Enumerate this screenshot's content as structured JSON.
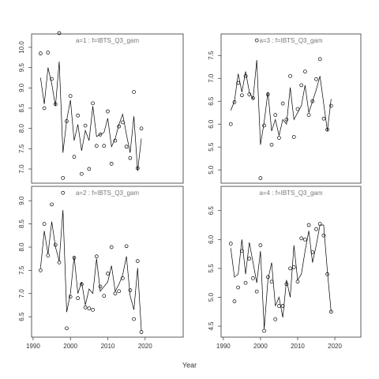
{
  "xlabel": "Year",
  "chart_data": [
    {
      "type": "scatter",
      "title": "a=1  :  f=IBTS_Q3_gam",
      "x": [
        1992,
        1993,
        1994,
        1995,
        1996,
        1997,
        1998,
        1999,
        2000,
        2001,
        2002,
        2003,
        2004,
        2005,
        2006,
        2007,
        2008,
        2009,
        2010,
        2011,
        2012,
        2013,
        2014,
        2015,
        2016,
        2017,
        2018,
        2019
      ],
      "series": [
        {
          "mode": "points",
          "color": "#000000",
          "values": [
            9.85,
            8.5,
            9.87,
            9.22,
            8.6,
            10.35,
            6.78,
            8.18,
            8.8,
            7.3,
            8.32,
            6.88,
            8.07,
            7.0,
            8.62,
            7.57,
            7.85,
            7.57,
            8.42,
            7.13,
            7.7,
            8.05,
            8.15,
            7.55,
            7.27,
            8.9,
            7.02,
            8.0
          ]
        },
        {
          "mode": "line",
          "color": "#000000",
          "values": [
            9.25,
            8.6,
            9.5,
            9.1,
            8.55,
            9.65,
            7.4,
            8.2,
            8.7,
            7.7,
            8.1,
            7.45,
            7.95,
            7.7,
            8.55,
            7.8,
            7.85,
            7.9,
            8.25,
            7.55,
            7.75,
            8.1,
            8.35,
            7.85,
            7.4,
            8.3,
            6.95,
            7.75
          ]
        }
      ],
      "xlim": [
        1989.6,
        2030.2
      ],
      "ylim": [
        6.65,
        10.33
      ],
      "yticks": [
        {
          "value": 7,
          "label": "7.0"
        },
        7.5,
        {
          "value": 8,
          "label": "8.0"
        },
        8.5,
        {
          "value": 9,
          "label": "9.0"
        },
        9.5,
        {
          "value": 10,
          "label": "10.0"
        }
      ]
    },
    {
      "type": "scatter",
      "title": "a=3  :  f=IBTS_Q3_gam",
      "x": [
        1992,
        1993,
        1994,
        1995,
        1996,
        1997,
        1998,
        1999,
        2000,
        2001,
        2002,
        2003,
        2004,
        2005,
        2006,
        2007,
        2008,
        2009,
        2010,
        2011,
        2012,
        2013,
        2014,
        2015,
        2016,
        2017,
        2018,
        2019
      ],
      "series": [
        {
          "mode": "points",
          "color": "#000000",
          "values": [
            6.0,
            6.48,
            6.9,
            6.63,
            7.05,
            6.65,
            6.57,
            7.83,
            4.82,
            5.97,
            6.65,
            5.55,
            6.2,
            5.7,
            6.45,
            6.1,
            7.05,
            5.72,
            6.33,
            6.85,
            7.15,
            6.2,
            6.5,
            6.98,
            7.42,
            6.12,
            5.88,
            6.4
          ]
        },
        {
          "mode": "line",
          "color": "#000000",
          "values": [
            6.3,
            6.5,
            7.1,
            6.7,
            7.15,
            6.7,
            6.55,
            7.4,
            5.55,
            6.05,
            6.7,
            5.85,
            6.1,
            5.75,
            6.1,
            6.0,
            6.8,
            6.1,
            6.25,
            6.4,
            6.85,
            6.25,
            6.5,
            6.75,
            7.05,
            6.45,
            5.85,
            6.55
          ]
        }
      ],
      "xlim": [
        1989.4,
        2027.0
      ],
      "ylim": [
        4.71,
        7.97
      ],
      "yticks": [
        {
          "value": 5,
          "label": "5.0"
        },
        5.5,
        {
          "value": 6,
          "label": "6.0"
        },
        6.5,
        {
          "value": 7,
          "label": "7.0"
        },
        7.5
      ]
    },
    {
      "type": "scatter",
      "title": "a=2  :  f=IBTS_Q3_gam",
      "x": [
        1992,
        1993,
        1994,
        1995,
        1996,
        1997,
        1998,
        1999,
        2000,
        2001,
        2002,
        2003,
        2004,
        2005,
        2006,
        2007,
        2008,
        2009,
        2010,
        2011,
        2012,
        2013,
        2014,
        2015,
        2016,
        2017,
        2018,
        2019
      ],
      "series": [
        {
          "mode": "points",
          "color": "#000000",
          "values": [
            7.5,
            8.5,
            7.82,
            8.92,
            8.05,
            7.67,
            9.17,
            6.25,
            6.93,
            7.77,
            6.9,
            7.2,
            6.7,
            6.68,
            6.65,
            7.8,
            7.15,
            6.95,
            7.43,
            8.0,
            7.0,
            7.05,
            7.33,
            8.02,
            7.07,
            6.45,
            7.7,
            6.17
          ]
        },
        {
          "mode": "line",
          "color": "#000000",
          "values": [
            7.55,
            8.35,
            7.85,
            8.55,
            8.0,
            7.7,
            8.8,
            6.6,
            7.0,
            7.8,
            7.0,
            7.25,
            6.75,
            7.1,
            7.0,
            7.75,
            7.05,
            7.15,
            7.25,
            7.6,
            7.05,
            7.2,
            7.4,
            7.8,
            6.95,
            6.65,
            7.55,
            6.2
          ]
        }
      ],
      "xlim": [
        1989.6,
        2030.2
      ],
      "ylim": [
        6.06,
        9.31
      ],
      "xticks": [
        1990,
        2000,
        2010,
        2020
      ],
      "yticks": [
        6.5,
        {
          "value": 7,
          "label": "7.0"
        },
        7.5,
        {
          "value": 8,
          "label": "8.0"
        },
        8.5,
        {
          "value": 9,
          "label": "9.0"
        }
      ]
    },
    {
      "type": "scatter",
      "title": "a=4  :  f=IBTS_Q3_gam",
      "x": [
        1992,
        1993,
        1994,
        1995,
        1996,
        1997,
        1998,
        1999,
        2000,
        2001,
        2002,
        2003,
        2004,
        2005,
        2006,
        2007,
        2008,
        2009,
        2010,
        2011,
        2012,
        2013,
        2014,
        2015,
        2016,
        2017,
        2018,
        2019
      ],
      "series": [
        {
          "mode": "points",
          "color": "#000000",
          "values": [
            5.93,
            4.93,
            5.17,
            5.8,
            5.25,
            5.67,
            5.33,
            5.1,
            5.9,
            4.42,
            5.35,
            5.27,
            4.62,
            4.85,
            4.85,
            5.23,
            5.5,
            5.52,
            5.27,
            6.02,
            6.0,
            6.25,
            5.78,
            6.18,
            6.27,
            6.07,
            5.4,
            4.75
          ]
        },
        {
          "mode": "line",
          "color": "#000000",
          "values": [
            5.85,
            5.35,
            5.4,
            6.0,
            5.4,
            5.95,
            5.6,
            5.25,
            5.8,
            4.45,
            5.3,
            5.6,
            4.85,
            5.0,
            4.65,
            5.3,
            5.0,
            5.9,
            5.3,
            5.4,
            5.8,
            6.15,
            5.6,
            5.9,
            6.25,
            6.25,
            5.45,
            4.75
          ]
        }
      ],
      "xlim": [
        1989.4,
        2027.0
      ],
      "ylim": [
        4.31,
        6.92
      ],
      "xticks": [
        1990,
        2000,
        2010,
        2020
      ],
      "yticks": [
        4.5,
        {
          "value": 5,
          "label": "5.0"
        },
        5.5,
        {
          "value": 6,
          "label": "6.0"
        },
        6.5
      ]
    }
  ]
}
